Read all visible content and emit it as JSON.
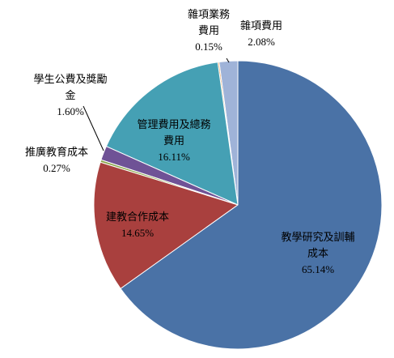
{
  "chart_data": {
    "type": "pie",
    "categories": [
      "教學研究及訓輔成本",
      "建教合作成本",
      "推廣教育成本",
      "學生公費及獎勵金",
      "管理費用及總務費用",
      "雜項業務費用",
      "雜項費用"
    ],
    "values": [
      65.14,
      14.65,
      0.27,
      1.6,
      16.11,
      0.15,
      2.08
    ],
    "value_labels": [
      "65.14%",
      "14.65%",
      "0.27%",
      "1.60%",
      "16.11%",
      "0.15%",
      "2.08%"
    ],
    "colors": [
      "#4a72a6",
      "#a9403e",
      "#8aa64a",
      "#6f5296",
      "#45a0b4",
      "#e8923a",
      "#9fb3d8"
    ]
  }
}
